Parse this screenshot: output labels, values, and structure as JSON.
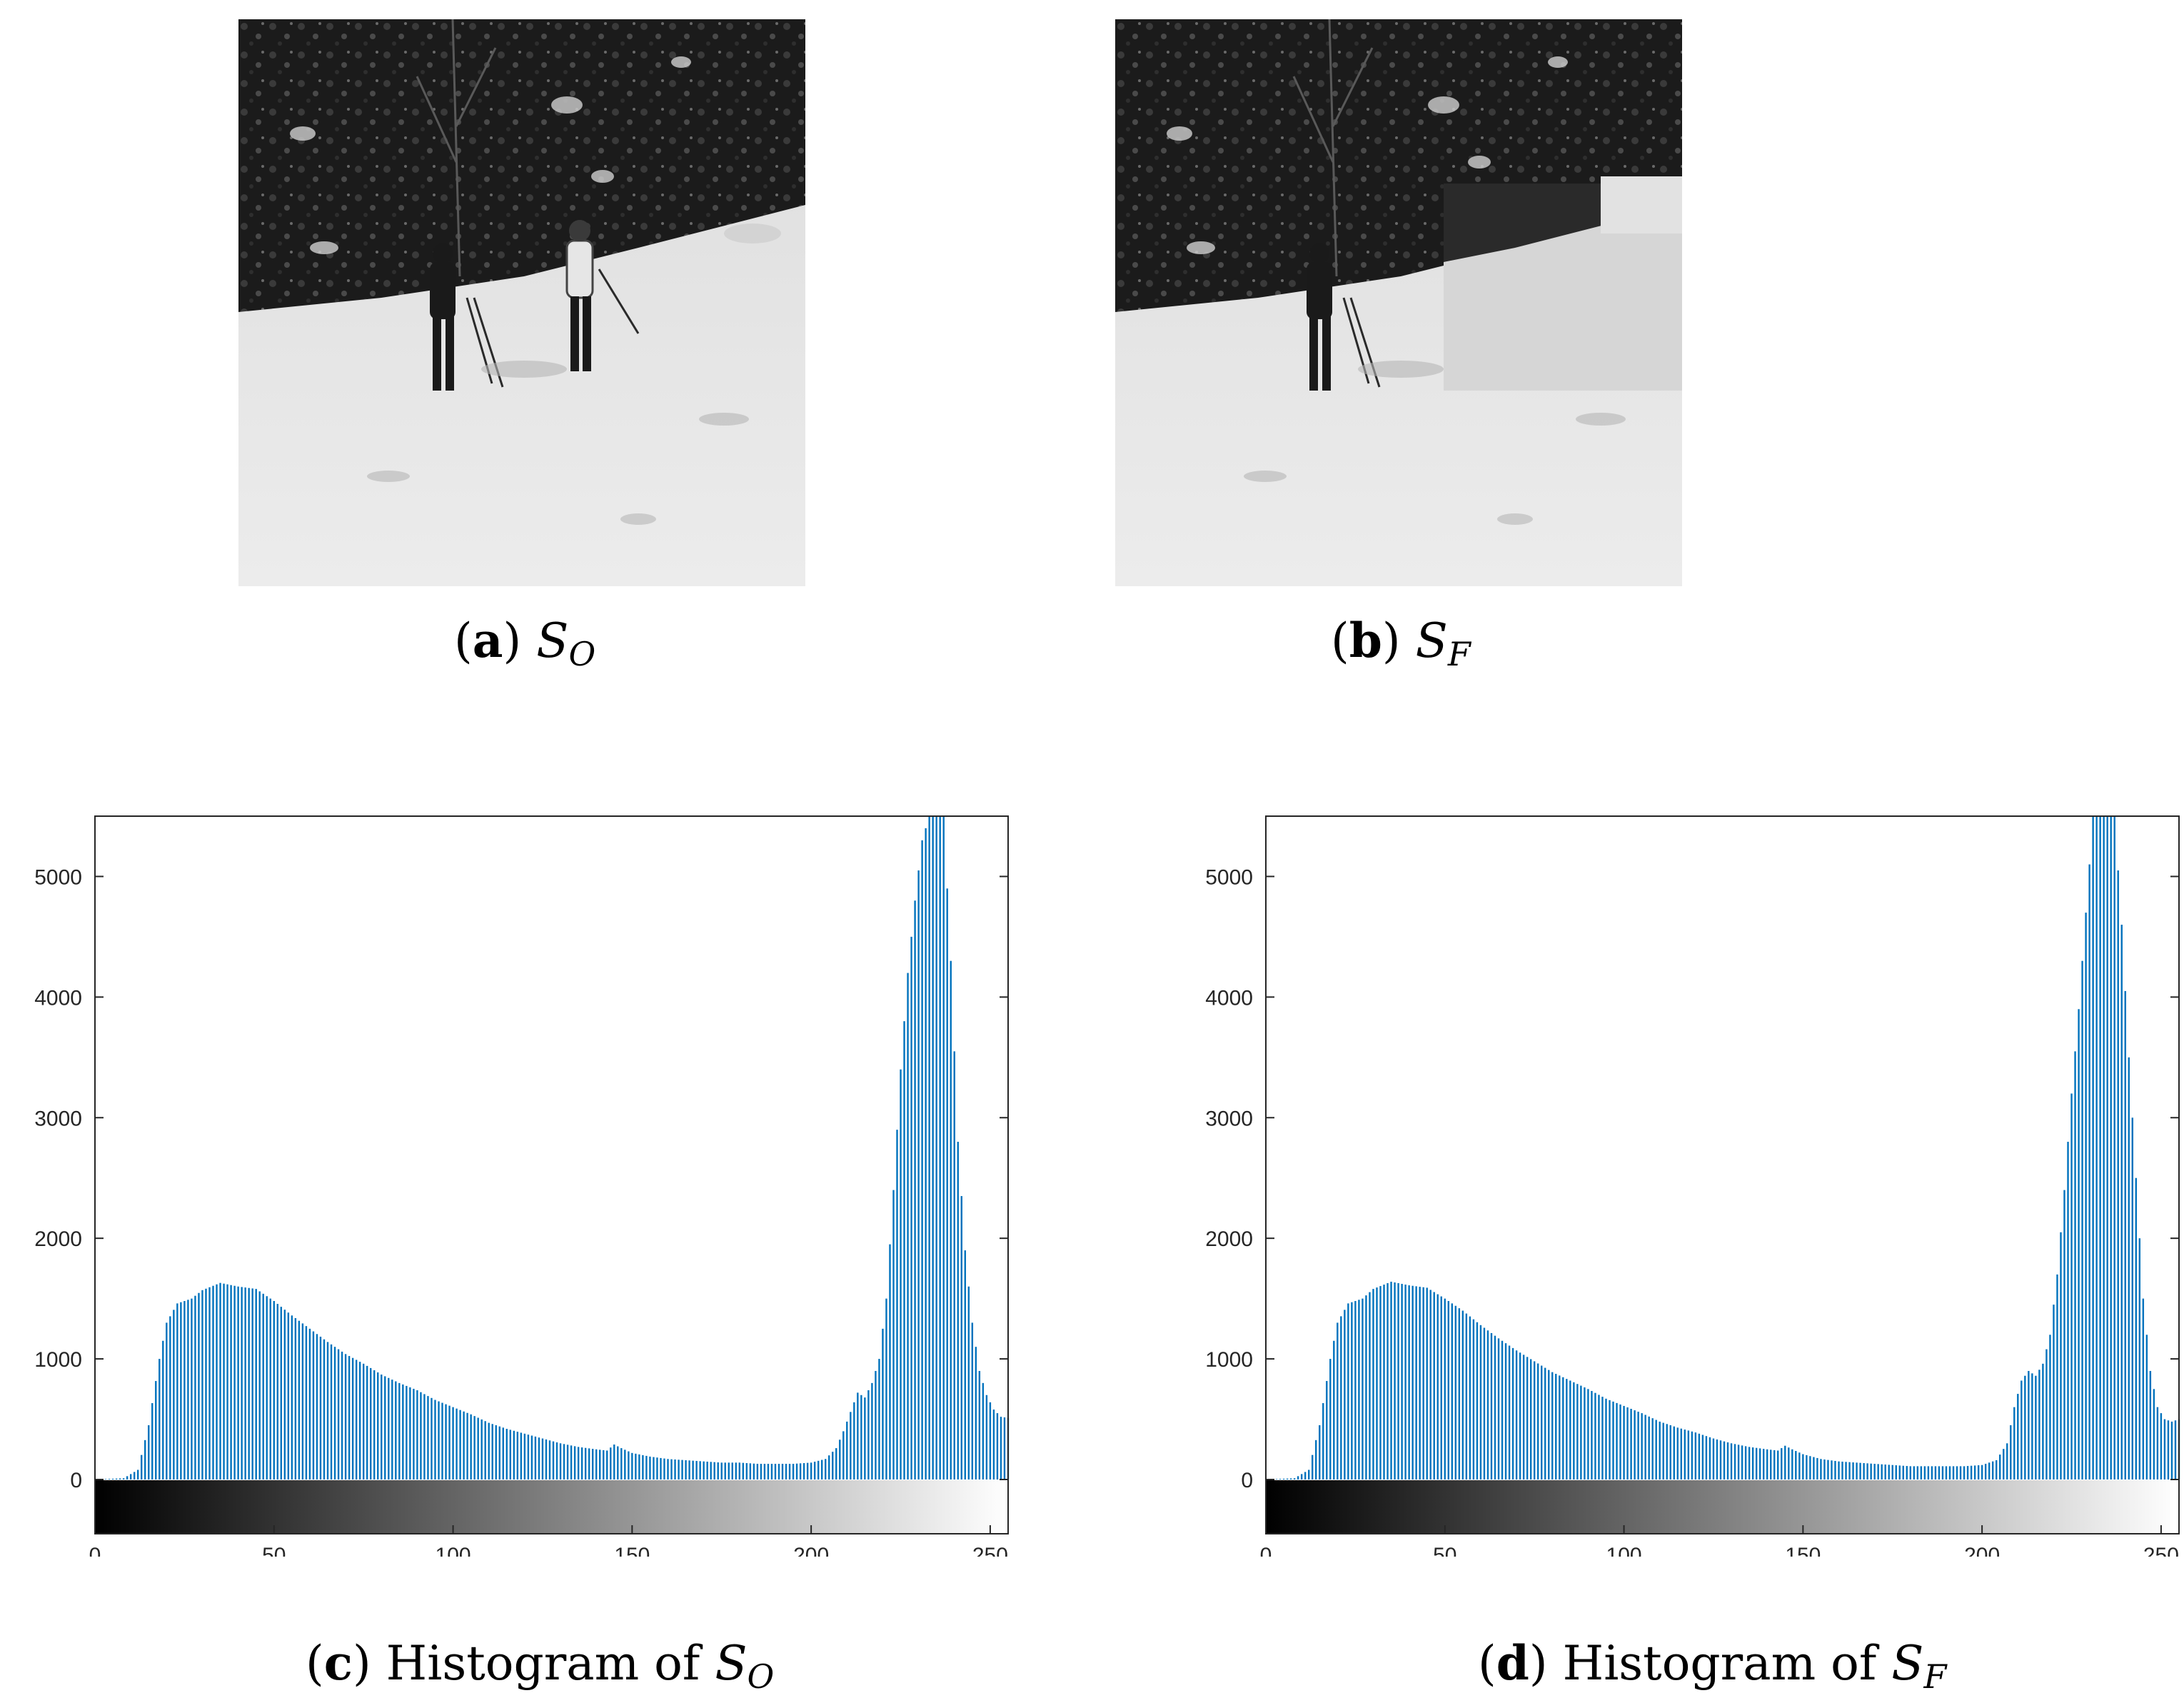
{
  "panels": {
    "a": {
      "label": "a",
      "symbol": "S",
      "subscript": "O"
    },
    "b": {
      "label": "b",
      "symbol": "S",
      "subscript": "F"
    },
    "c": {
      "label": "c",
      "text": "Histogram of ",
      "symbol": "S",
      "subscript": "O"
    },
    "d": {
      "label": "d",
      "text": "Histogram of ",
      "symbol": "S",
      "subscript": "F"
    }
  },
  "colors": {
    "bar": "#0072BD",
    "axis": "#262626"
  },
  "chart_data": [
    {
      "type": "bar",
      "title": "",
      "xlabel": "",
      "ylabel": "",
      "xlim": [
        0,
        255
      ],
      "ylim": [
        -450,
        5500
      ],
      "xticks": [
        0,
        50,
        100,
        150,
        200,
        250
      ],
      "yticks": [
        0,
        1000,
        2000,
        3000,
        4000,
        5000
      ],
      "grid": false,
      "colorbar": "grayscale",
      "anchors": [
        [
          0,
          0
        ],
        [
          8,
          10
        ],
        [
          12,
          80
        ],
        [
          15,
          450
        ],
        [
          18,
          1000
        ],
        [
          20,
          1300
        ],
        [
          23,
          1460
        ],
        [
          27,
          1500
        ],
        [
          30,
          1570
        ],
        [
          35,
          1630
        ],
        [
          40,
          1600
        ],
        [
          45,
          1580
        ],
        [
          50,
          1480
        ],
        [
          55,
          1360
        ],
        [
          60,
          1250
        ],
        [
          65,
          1140
        ],
        [
          70,
          1040
        ],
        [
          75,
          960
        ],
        [
          80,
          870
        ],
        [
          85,
          800
        ],
        [
          90,
          740
        ],
        [
          95,
          660
        ],
        [
          100,
          600
        ],
        [
          105,
          540
        ],
        [
          110,
          470
        ],
        [
          115,
          420
        ],
        [
          120,
          380
        ],
        [
          125,
          340
        ],
        [
          130,
          300
        ],
        [
          135,
          270
        ],
        [
          140,
          250
        ],
        [
          143,
          240
        ],
        [
          145,
          290
        ],
        [
          147,
          260
        ],
        [
          150,
          220
        ],
        [
          155,
          190
        ],
        [
          160,
          170
        ],
        [
          165,
          160
        ],
        [
          170,
          150
        ],
        [
          175,
          140
        ],
        [
          180,
          140
        ],
        [
          185,
          130
        ],
        [
          190,
          130
        ],
        [
          195,
          130
        ],
        [
          200,
          140
        ],
        [
          204,
          170
        ],
        [
          207,
          260
        ],
        [
          209,
          400
        ],
        [
          211,
          560
        ],
        [
          213,
          720
        ],
        [
          215,
          680
        ],
        [
          217,
          800
        ],
        [
          219,
          1000
        ],
        [
          221,
          1500
        ],
        [
          223,
          2400
        ],
        [
          225,
          3400
        ],
        [
          227,
          4200
        ],
        [
          229,
          4800
        ],
        [
          231,
          5300
        ],
        [
          233,
          5500
        ],
        [
          235,
          5600
        ],
        [
          237,
          5500
        ],
        [
          239,
          4300
        ],
        [
          241,
          2800
        ],
        [
          243,
          1900
        ],
        [
          245,
          1300
        ],
        [
          247,
          900
        ],
        [
          249,
          700
        ],
        [
          251,
          580
        ],
        [
          253,
          520
        ],
        [
          255,
          510
        ]
      ]
    },
    {
      "type": "bar",
      "title": "",
      "xlabel": "",
      "ylabel": "",
      "xlim": [
        0,
        255
      ],
      "ylim": [
        -450,
        5500
      ],
      "xticks": [
        0,
        50,
        100,
        150,
        200,
        250
      ],
      "yticks": [
        0,
        1000,
        2000,
        3000,
        4000,
        5000
      ],
      "grid": false,
      "colorbar": "grayscale",
      "anchors": [
        [
          0,
          0
        ],
        [
          8,
          10
        ],
        [
          12,
          80
        ],
        [
          15,
          450
        ],
        [
          18,
          1000
        ],
        [
          20,
          1300
        ],
        [
          23,
          1460
        ],
        [
          27,
          1500
        ],
        [
          30,
          1580
        ],
        [
          35,
          1640
        ],
        [
          40,
          1610
        ],
        [
          45,
          1590
        ],
        [
          50,
          1500
        ],
        [
          55,
          1400
        ],
        [
          60,
          1280
        ],
        [
          65,
          1170
        ],
        [
          70,
          1070
        ],
        [
          75,
          980
        ],
        [
          80,
          890
        ],
        [
          85,
          820
        ],
        [
          90,
          750
        ],
        [
          95,
          670
        ],
        [
          100,
          610
        ],
        [
          105,
          550
        ],
        [
          110,
          480
        ],
        [
          115,
          430
        ],
        [
          120,
          390
        ],
        [
          125,
          340
        ],
        [
          130,
          300
        ],
        [
          135,
          270
        ],
        [
          140,
          250
        ],
        [
          143,
          240
        ],
        [
          145,
          280
        ],
        [
          147,
          250
        ],
        [
          150,
          210
        ],
        [
          155,
          170
        ],
        [
          160,
          150
        ],
        [
          165,
          140
        ],
        [
          170,
          130
        ],
        [
          175,
          120
        ],
        [
          180,
          110
        ],
        [
          185,
          110
        ],
        [
          190,
          110
        ],
        [
          195,
          110
        ],
        [
          200,
          120
        ],
        [
          204,
          160
        ],
        [
          207,
          300
        ],
        [
          209,
          600
        ],
        [
          211,
          820
        ],
        [
          213,
          900
        ],
        [
          215,
          860
        ],
        [
          217,
          960
        ],
        [
          219,
          1200
        ],
        [
          221,
          1700
        ],
        [
          223,
          2400
        ],
        [
          225,
          3200
        ],
        [
          227,
          3900
        ],
        [
          229,
          4700
        ],
        [
          231,
          5500
        ],
        [
          233,
          5600
        ],
        [
          235,
          5600
        ],
        [
          237,
          5500
        ],
        [
          239,
          4600
        ],
        [
          241,
          3500
        ],
        [
          243,
          2500
        ],
        [
          245,
          1500
        ],
        [
          247,
          900
        ],
        [
          249,
          600
        ],
        [
          251,
          500
        ],
        [
          253,
          480
        ],
        [
          255,
          500
        ]
      ]
    }
  ]
}
